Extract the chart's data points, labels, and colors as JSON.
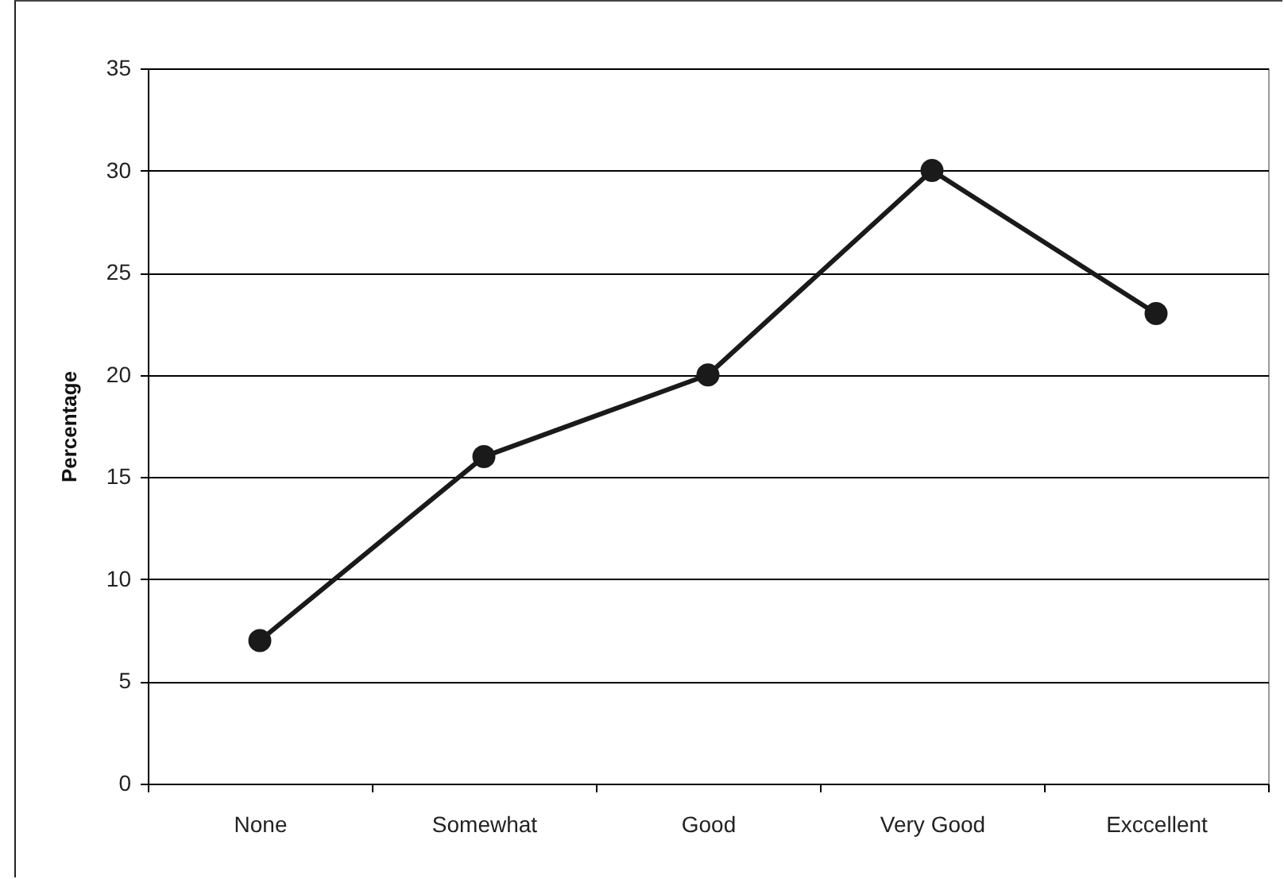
{
  "chart_data": {
    "type": "line",
    "ylabel": "Percentage",
    "categories": [
      "None",
      "Somewhat",
      "Good",
      "Very Good",
      "Exccellent"
    ],
    "series": [
      {
        "color": "#1a1a1a",
        "values": [
          7,
          16,
          20,
          30,
          23
        ]
      }
    ],
    "ylim": [
      0,
      35
    ],
    "yticks": [
      0,
      5,
      10,
      15,
      20,
      25,
      30,
      35
    ],
    "grid": "y",
    "marker": "circle",
    "line_style": "solid"
  }
}
